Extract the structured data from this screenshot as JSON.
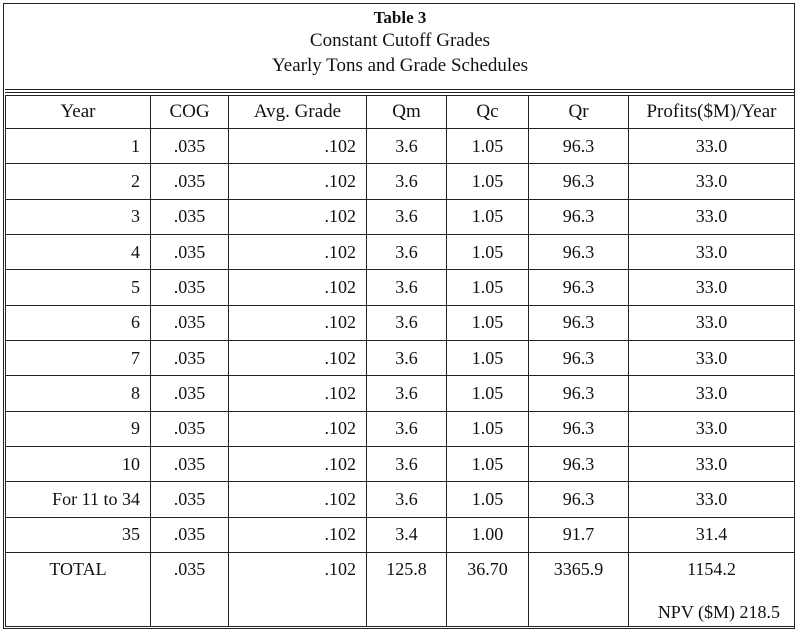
{
  "title": {
    "line1": "Table 3",
    "line2": "Constant Cutoff Grades",
    "line3": "Yearly Tons and Grade Schedules"
  },
  "columns": [
    "Year",
    "COG",
    "Avg. Grade",
    "Qm",
    "Qc",
    "Qr",
    "Profits($M)/Year"
  ],
  "rows": [
    [
      "1",
      ".035",
      ".102",
      "3.6",
      "1.05",
      "96.3",
      "33.0"
    ],
    [
      "2",
      ".035",
      ".102",
      "3.6",
      "1.05",
      "96.3",
      "33.0"
    ],
    [
      "3",
      ".035",
      ".102",
      "3.6",
      "1.05",
      "96.3",
      "33.0"
    ],
    [
      "4",
      ".035",
      ".102",
      "3.6",
      "1.05",
      "96.3",
      "33.0"
    ],
    [
      "5",
      ".035",
      ".102",
      "3.6",
      "1.05",
      "96.3",
      "33.0"
    ],
    [
      "6",
      ".035",
      ".102",
      "3.6",
      "1.05",
      "96.3",
      "33.0"
    ],
    [
      "7",
      ".035",
      ".102",
      "3.6",
      "1.05",
      "96.3",
      "33.0"
    ],
    [
      "8",
      ".035",
      ".102",
      "3.6",
      "1.05",
      "96.3",
      "33.0"
    ],
    [
      "9",
      ".035",
      ".102",
      "3.6",
      "1.05",
      "96.3",
      "33.0"
    ],
    [
      "10",
      ".035",
      ".102",
      "3.6",
      "1.05",
      "96.3",
      "33.0"
    ],
    [
      "For 11 to 34",
      ".035",
      ".102",
      "3.6",
      "1.05",
      "96.3",
      "33.0"
    ],
    [
      "35",
      ".035",
      ".102",
      "3.4",
      "1.00",
      "91.7",
      "31.4"
    ]
  ],
  "total": {
    "label": "TOTAL",
    "cog": ".035",
    "avg_grade": ".102",
    "qm": "125.8",
    "qc": "36.70",
    "qr": "3365.9",
    "profits": "1154.2",
    "npv": "NPV ($M) 218.5"
  }
}
